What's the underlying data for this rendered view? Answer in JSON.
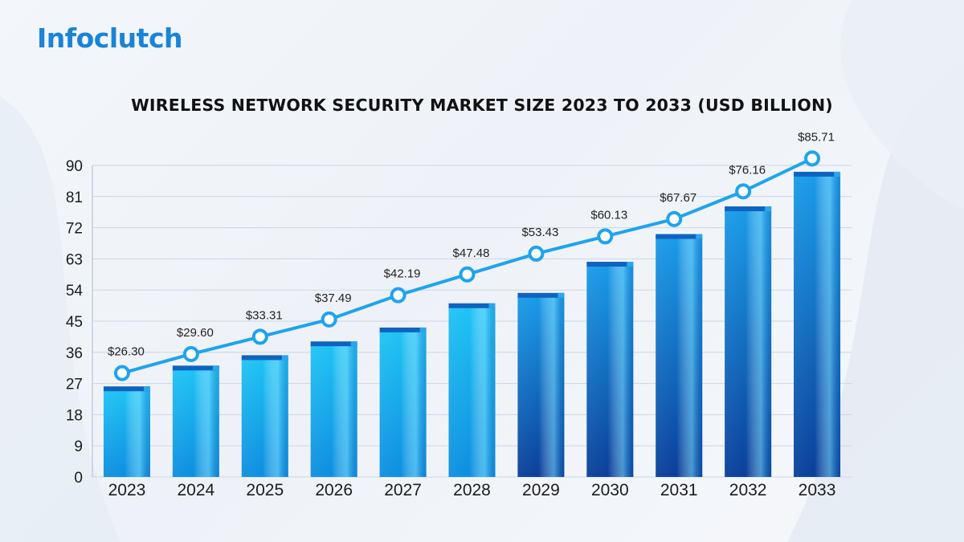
{
  "brand": {
    "logo_text": "Infoclutch"
  },
  "chart_data": {
    "type": "bar",
    "title": "WIRELESS NETWORK SECURITY MARKET SIZE 2023 TO 2033 (USD BILLION)",
    "xlabel": "",
    "ylabel": "",
    "categories": [
      "2023",
      "2024",
      "2025",
      "2026",
      "2027",
      "2028",
      "2029",
      "2030",
      "2031",
      "2032",
      "2033"
    ],
    "values": [
      26.3,
      29.6,
      33.31,
      37.49,
      42.19,
      47.48,
      53.43,
      60.13,
      67.67,
      76.16,
      85.71
    ],
    "bar_values": [
      25,
      31,
      34,
      38,
      42,
      49,
      52,
      61,
      69,
      77,
      87
    ],
    "data_labels": [
      "$26.30",
      "$29.60",
      "$33.31",
      "$37.49",
      "$42.19",
      "$47.48",
      "$53.43",
      "$60.13",
      "$67.67",
      "$76.16",
      "$85.71"
    ],
    "line_values": [
      30,
      35.5,
      40.5,
      45.5,
      52.5,
      58.5,
      64.5,
      69.5,
      74.5,
      82.5,
      92
    ],
    "yticks": [
      "0",
      "9",
      "18",
      "27",
      "36",
      "45",
      "54",
      "63",
      "72",
      "81",
      "90"
    ],
    "ylim": [
      0,
      90
    ],
    "grid": true,
    "legend": "none",
    "colors": {
      "bar_light": "#22c6f5",
      "bar_dark": "#0a4fa8",
      "line": "#1fa3ee",
      "marker_fill": "#ffffff",
      "grid": "#c9d7e6"
    }
  }
}
